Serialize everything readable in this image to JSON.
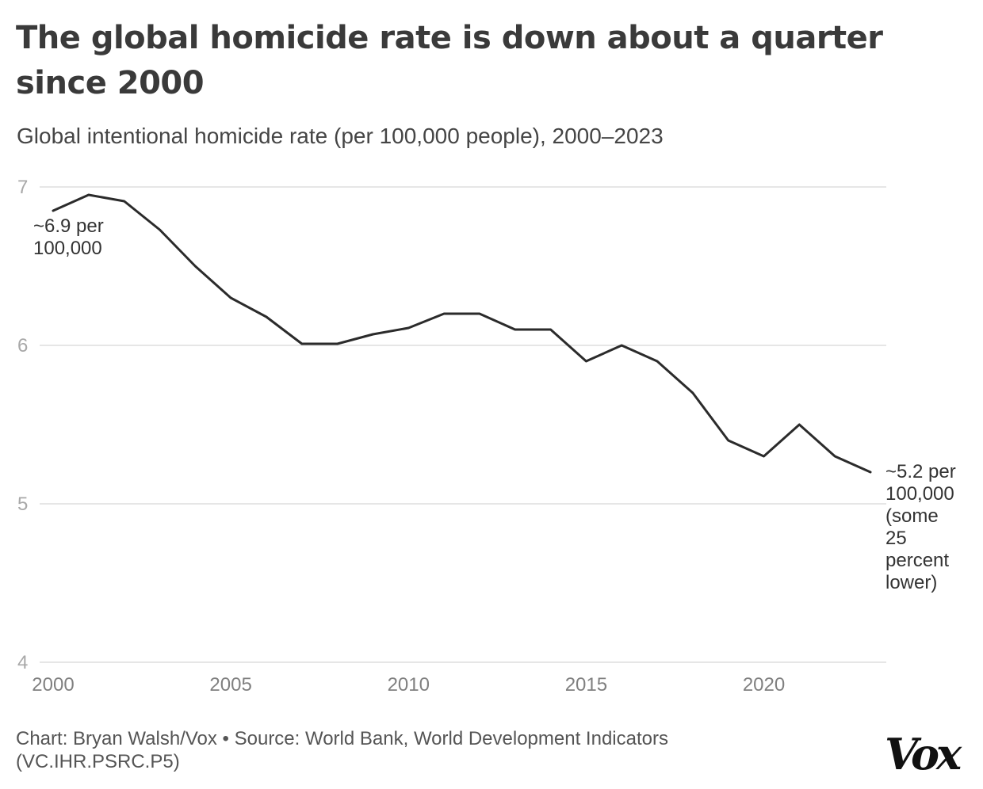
{
  "title": "The global homicide rate is down about a quarter since 2000",
  "subtitle": "Global intentional homicide rate (per 100,000 people), 2000–2023",
  "footer": {
    "credit": "Chart: Bryan Walsh/Vox • Source: World Bank, World Development Indicators (VC.IHR.PSRC.P5)"
  },
  "logo": "Vox",
  "chart_data": {
    "type": "line",
    "title": "The global homicide rate is down about a quarter since 2000",
    "subtitle": "Global intentional homicide rate (per 100,000 people), 2000–2023",
    "xlabel": "",
    "ylabel": "",
    "xlim": [
      2000,
      2023
    ],
    "ylim": [
      4,
      7
    ],
    "x_ticks": [
      2000,
      2005,
      2010,
      2015,
      2020
    ],
    "y_ticks": [
      4,
      5,
      6,
      7
    ],
    "grid": "horizontal",
    "line_color": "#2b2b2b",
    "x": [
      2000,
      2001,
      2002,
      2003,
      2004,
      2005,
      2006,
      2007,
      2008,
      2009,
      2010,
      2011,
      2012,
      2013,
      2014,
      2015,
      2016,
      2017,
      2018,
      2019,
      2020,
      2021,
      2022,
      2023
    ],
    "y": [
      6.85,
      6.95,
      6.91,
      6.73,
      6.5,
      6.3,
      6.18,
      6.01,
      6.01,
      6.07,
      6.11,
      6.2,
      6.2,
      6.1,
      6.1,
      5.9,
      6.0,
      5.9,
      5.7,
      5.4,
      5.3,
      5.5,
      5.3,
      5.2
    ],
    "annotations": [
      {
        "x": 2000,
        "lines": [
          "~6.9 per",
          "100,000"
        ]
      },
      {
        "x": 2023,
        "lines": [
          "~5.2 per",
          "100,000",
          "(some",
          "25",
          "percent",
          "lower)"
        ]
      }
    ]
  }
}
